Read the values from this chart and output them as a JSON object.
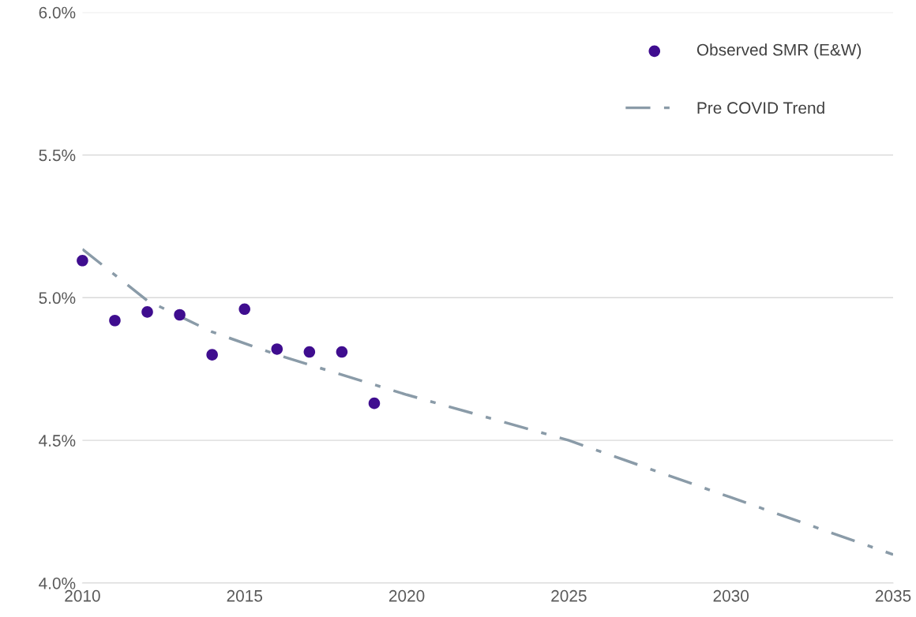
{
  "chart_data": {
    "type": "scatter",
    "xlim": [
      2010,
      2035
    ],
    "xticks": [
      2010,
      2015,
      2020,
      2025,
      2030,
      2035
    ],
    "ylim": [
      4.0,
      6.0
    ],
    "yticks": [
      {
        "value": 4.0,
        "label": "4.0%"
      },
      {
        "value": 4.5,
        "label": "4.5%"
      },
      {
        "value": 5.0,
        "label": "5.0%"
      },
      {
        "value": 5.5,
        "label": "5.5%"
      },
      {
        "value": 6.0,
        "label": "6.0%"
      }
    ],
    "grid": "y",
    "legend": "top right",
    "series": [
      {
        "name": "Observed SMR (E&W)",
        "marker": "circle",
        "color": "#3f0d8f",
        "x": [
          2010,
          2011,
          2012,
          2013,
          2014,
          2015,
          2016,
          2017,
          2018,
          2019
        ],
        "values": [
          5.13,
          4.92,
          4.95,
          4.94,
          4.8,
          4.96,
          4.82,
          4.81,
          4.81,
          4.63
        ]
      },
      {
        "name": "Pre COVID Trend",
        "type": "line",
        "line_style": "dashed",
        "color": "#8a9ba8",
        "x": [
          2010,
          2012,
          2014,
          2016,
          2020,
          2025,
          2030,
          2035
        ],
        "values": [
          5.17,
          4.99,
          4.88,
          4.8,
          4.66,
          4.5,
          4.3,
          4.1
        ]
      }
    ]
  }
}
